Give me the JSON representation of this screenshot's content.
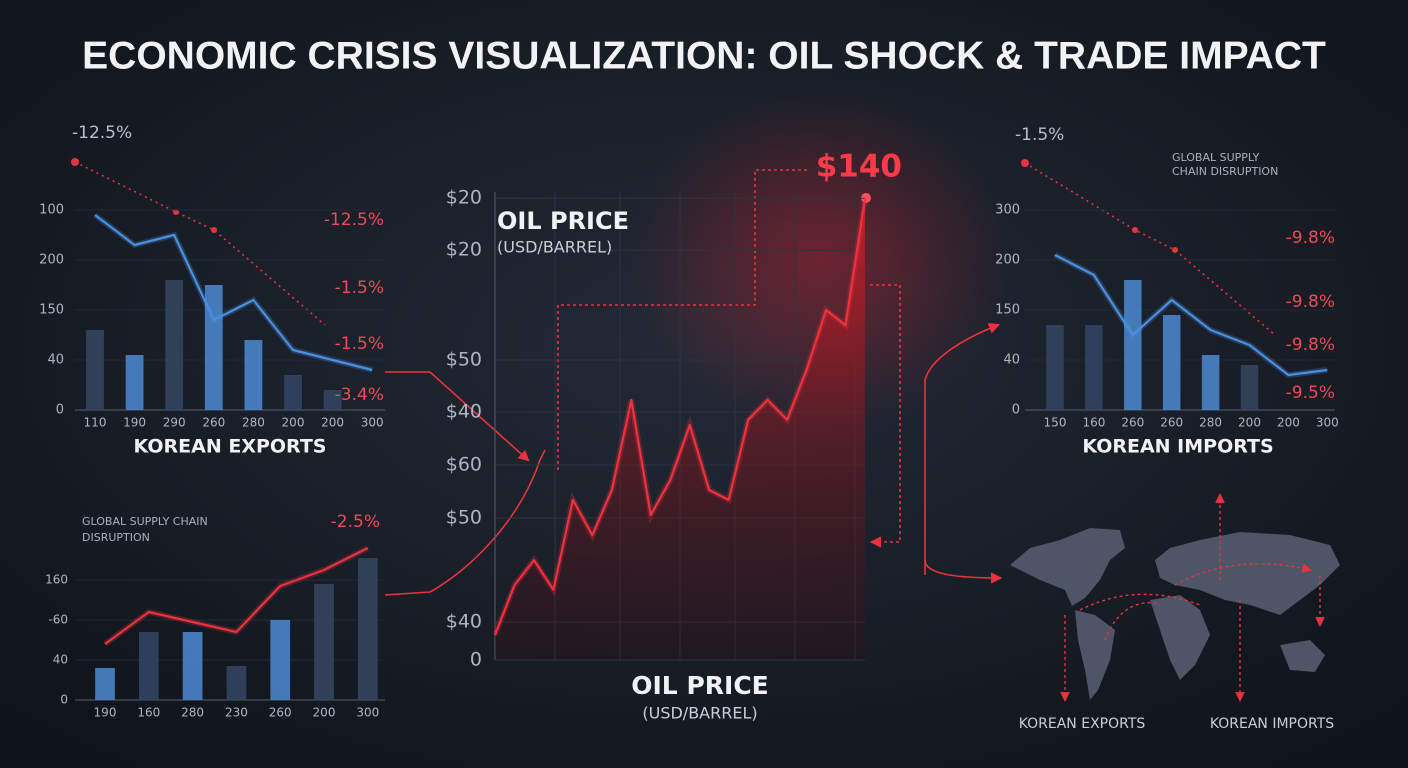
{
  "title": "ECONOMIC CRISIS VISUALIZATION: OIL SHOCK & TRADE IMPACT",
  "map": {
    "labels": [
      "KOREAN EXPORTS",
      "KOREAN IMPORTS"
    ]
  },
  "chart_data": [
    {
      "type": "bar",
      "title": "KOREAN EXPORTS",
      "categories": [
        "110",
        "190",
        "290",
        "260",
        "280",
        "200",
        "200",
        "300"
      ],
      "ylim": [
        0,
        5
      ],
      "yticks": [
        0,
        {
          "value": 1,
          "label": "40"
        },
        {
          "value": 2,
          "label": "150"
        },
        {
          "value": 3,
          "label": "200"
        },
        {
          "value": 4,
          "label": "100"
        }
      ],
      "grid": true,
      "series": [
        {
          "type": "bar",
          "colors": [
            "#34445f",
            "#4a84c8",
            "#34445f",
            "#4a84c8",
            "#4a84c8",
            "#34445f",
            "#34445f",
            "#34445f"
          ],
          "values": [
            1.6,
            1.1,
            2.6,
            2.5,
            1.4,
            0.7,
            0.4,
            null
          ]
        },
        {
          "type": "line",
          "color": "#4a8fe0",
          "values": [
            3.9,
            3.3,
            3.5,
            1.8,
            2.2,
            1.2,
            1.0,
            0.8
          ]
        }
      ],
      "annotations": [
        "-12.5%",
        "-12.5%",
        "-1.5%",
        "-1.5%",
        "-3.4%"
      ]
    },
    {
      "type": "bar",
      "title": "KOREAN IMPORTS",
      "categories": [
        "150",
        "160",
        "260",
        "260",
        "280",
        "200",
        "200",
        "300"
      ],
      "ylim": [
        0,
        5
      ],
      "yticks": [
        0,
        {
          "value": 1,
          "label": "40"
        },
        {
          "value": 2,
          "label": "150"
        },
        {
          "value": 3,
          "label": "200"
        },
        {
          "value": 4,
          "label": "300"
        }
      ],
      "grid": true,
      "series": [
        {
          "type": "bar",
          "colors": [
            "#34445f",
            "#34445f",
            "#4a84c8",
            "#4a84c8",
            "#4a84c8",
            "#34445f",
            "#34445f",
            "#34445f"
          ],
          "values": [
            1.7,
            1.7,
            2.6,
            1.9,
            1.1,
            0.9,
            null,
            null
          ]
        },
        {
          "type": "line",
          "color": "#4a8fe0",
          "values": [
            3.1,
            2.7,
            1.5,
            2.2,
            1.6,
            1.3,
            0.7,
            0.8
          ]
        }
      ],
      "annotations": [
        "-1.5%",
        "GLOBAL SUPPLY",
        "CHAIN DISRUPTION",
        "-9.8%",
        "-9.8%",
        "-9.8%",
        "-9.5%"
      ]
    },
    {
      "type": "bar",
      "categories": [
        "190",
        "160",
        "280",
        "230",
        "260",
        "200",
        "300"
      ],
      "ylim": [
        0,
        4
      ],
      "yticks": [
        0,
        {
          "value": 1,
          "label": "40"
        },
        {
          "value": 2,
          "label": "-60"
        },
        {
          "value": 3,
          "label": "160"
        }
      ],
      "grid": true,
      "series": [
        {
          "type": "bar",
          "colors": [
            "#4a84c8",
            "#34445f",
            "#4a84c8",
            "#34445f",
            "#4a84c8",
            "#34445f",
            "#34445f"
          ],
          "values": [
            0.8,
            1.7,
            1.7,
            0.85,
            2.0,
            2.9,
            3.55
          ]
        },
        {
          "type": "line",
          "color": "#e8323f",
          "values": [
            1.4,
            2.2,
            1.95,
            1.7,
            2.85,
            3.25,
            3.8
          ]
        }
      ],
      "annotations": [
        "GLOBAL SUPPLY CHAIN",
        "DISRUPTION",
        "-2.5%"
      ]
    },
    {
      "type": "line",
      "title": "OIL PRICE",
      "subtitle": "(USD/BARREL)",
      "xlabel": "OIL PRICE",
      "xlabel_sub": "(USD/BARREL)",
      "ylim": [
        0,
        9
      ],
      "yticks": [
        0,
        {
          "value": 0.73,
          "label": "$40"
        },
        {
          "value": 2.73,
          "label": "$50"
        },
        {
          "value": 3.75,
          "label": "$60"
        },
        {
          "value": 4.77,
          "label": "$40"
        },
        {
          "value": 5.77,
          "label": "$50"
        },
        {
          "value": 7.88,
          "label": "$20"
        },
        {
          "value": 8.88,
          "label": "$20"
        }
      ],
      "grid": true,
      "series": [
        {
          "type": "line",
          "color": "#f0303c",
          "values": [
            0.48,
            1.44,
            1.92,
            1.35,
            3.08,
            2.4,
            3.27,
            5.0,
            2.79,
            3.46,
            4.52,
            3.27,
            3.08,
            4.62,
            5.0,
            4.62,
            5.58,
            6.73,
            6.44,
            8.88
          ]
        }
      ],
      "annotations": [
        "$140"
      ]
    }
  ]
}
